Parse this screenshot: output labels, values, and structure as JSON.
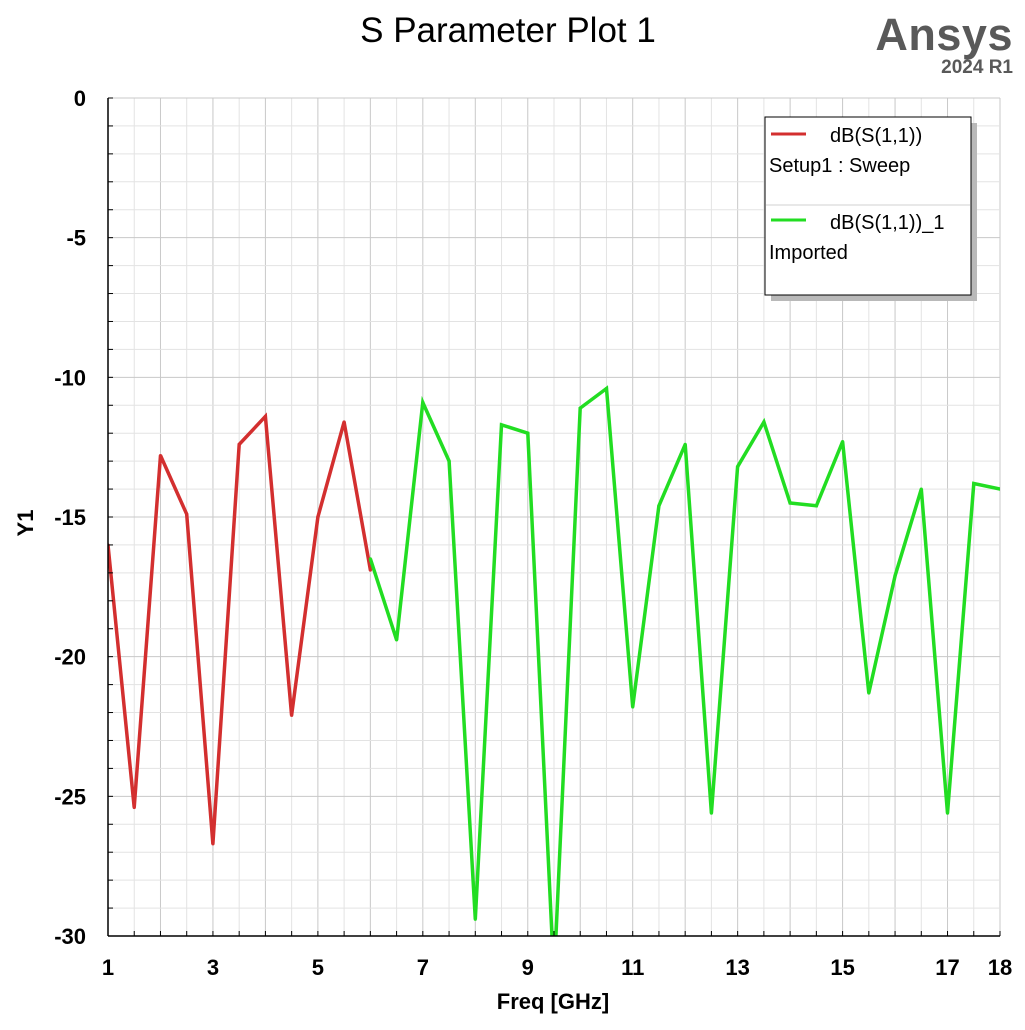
{
  "brand": {
    "name": "Ansys",
    "version": "2024 R1"
  },
  "colors": {
    "series_1": "#d32f2f",
    "series_2": "#22dd22",
    "grid": "#c8c8c8",
    "minor_grid": "#e3e3e3",
    "axis": "#000000"
  },
  "chart_data": {
    "type": "line",
    "title": "S Parameter Plot 1",
    "xlabel": "Freq [GHz]",
    "ylabel": "Y1",
    "xlim": [
      1,
      18
    ],
    "ylim": [
      -30,
      0
    ],
    "xticks": [
      1,
      3,
      5,
      7,
      9,
      11,
      13,
      15,
      17,
      18
    ],
    "yticks": [
      0,
      -5,
      -10,
      -15,
      -20,
      -25,
      -30
    ],
    "grid": true,
    "legend_position": "top-right",
    "series": [
      {
        "name": "dB(S(1,1))",
        "source": "Setup1 : Sweep",
        "color": "#d32f2f",
        "x": [
          1,
          1.5,
          2,
          2.5,
          3,
          3.5,
          4,
          4.5,
          5,
          5.5,
          6
        ],
        "y": [
          -16.0,
          -25.4,
          -12.8,
          -14.9,
          -26.7,
          -12.4,
          -11.4,
          -22.1,
          -15.0,
          -11.6,
          -16.9
        ]
      },
      {
        "name": "dB(S(1,1))_1",
        "source": "Imported",
        "color": "#22dd22",
        "x": [
          6,
          6.5,
          7,
          7.5,
          8,
          8.5,
          9,
          9.5,
          10,
          10.5,
          11,
          11.5,
          12,
          12.5,
          13,
          13.5,
          14,
          14.5,
          15,
          15.5,
          16,
          16.5,
          17,
          17.5,
          18
        ],
        "y": [
          -16.5,
          -19.4,
          -10.9,
          -13.0,
          -29.4,
          -11.7,
          -12.0,
          -31.5,
          -11.1,
          -10.4,
          -21.8,
          -14.6,
          -12.4,
          -25.6,
          -13.2,
          -11.6,
          -14.5,
          -14.6,
          -12.3,
          -21.3,
          -17.1,
          -14.0,
          -25.6,
          -13.8,
          -14.0
        ]
      }
    ]
  }
}
